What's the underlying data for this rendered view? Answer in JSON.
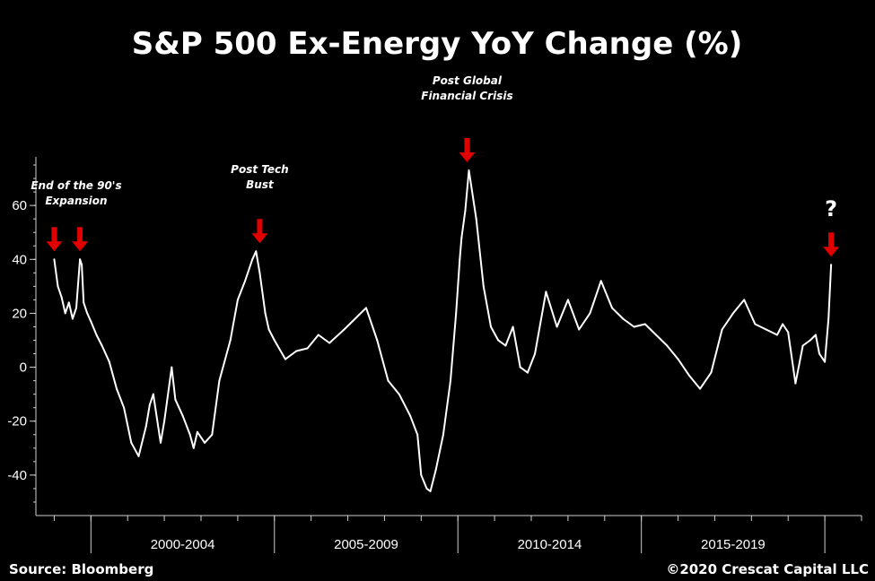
{
  "chart_data": {
    "type": "line",
    "title": "S&P 500 Ex-Energy YoY Change (%)",
    "xlabel": "",
    "ylabel": "",
    "xlim": [
      1998.5,
      2021.0
    ],
    "ylim": [
      -55,
      78
    ],
    "yticks": [
      -40,
      -20,
      0,
      20,
      40,
      60
    ],
    "period_labels": [
      "2000-2004",
      "2005-2009",
      "2010-2014",
      "2015-2019"
    ],
    "period_bounds": [
      2000.0,
      2005.0,
      2010.0,
      2015.0,
      2020.0
    ],
    "grid": false,
    "legend": "none",
    "line_color": "#ffffff",
    "arrow_color": "#e00000",
    "series": [
      {
        "x": [
          1999.0,
          1999.1,
          1999.2,
          1999.3,
          1999.4,
          1999.5,
          1999.6,
          1999.7,
          1999.75,
          1999.8,
          1999.9,
          2000.0,
          2000.15,
          2000.3,
          2000.5,
          2000.7,
          2000.9,
          2001.1,
          2001.3,
          2001.5,
          2001.6,
          2001.7,
          2001.9,
          2002.0,
          2002.2,
          2002.3,
          2002.5,
          2002.7,
          2002.8,
          2002.9,
          2003.1,
          2003.3,
          2003.5,
          2003.8,
          2004.0,
          2004.2,
          2004.4,
          2004.5,
          2004.6,
          2004.75,
          2004.85,
          2005.0,
          2005.3,
          2005.6,
          2005.9,
          2006.2,
          2006.5,
          2006.9,
          2007.2,
          2007.5,
          2007.8,
          2008.1,
          2008.4,
          2008.7,
          2008.9,
          2009.0,
          2009.15,
          2009.25,
          2009.4,
          2009.6,
          2009.8,
          2009.95,
          2010.05,
          2010.1,
          2010.2,
          2010.3,
          2010.5,
          2010.7,
          2010.9,
          2011.1,
          2011.3,
          2011.5,
          2011.7,
          2011.9,
          2012.1,
          2012.4,
          2012.7,
          2013.0,
          2013.3,
          2013.6,
          2013.9,
          2014.2,
          2014.5,
          2014.8,
          2015.1,
          2015.4,
          2015.7,
          2016.0,
          2016.3,
          2016.6,
          2016.9,
          2017.2,
          2017.5,
          2017.8,
          2018.1,
          2018.4,
          2018.7,
          2018.85,
          2019.0,
          2019.2,
          2019.4,
          2019.6,
          2019.75,
          2019.85,
          2020.0,
          2020.1,
          2020.17
        ],
        "values": [
          40,
          30,
          26,
          20,
          24,
          18,
          22,
          40,
          38,
          24,
          20,
          17,
          12,
          8,
          2,
          -8,
          -15,
          -28,
          -33,
          -22,
          -14,
          -10,
          -28,
          -20,
          0,
          -12,
          -18,
          -25,
          -30,
          -24,
          -28,
          -25,
          -5,
          10,
          25,
          32,
          40,
          43,
          35,
          20,
          14,
          10,
          3,
          6,
          7,
          12,
          9,
          14,
          18,
          22,
          10,
          -5,
          -10,
          -18,
          -25,
          -40,
          -45,
          -46,
          -38,
          -25,
          -5,
          20,
          40,
          48,
          58,
          73,
          55,
          30,
          15,
          10,
          8,
          15,
          0,
          -2,
          5,
          28,
          15,
          25,
          14,
          20,
          32,
          22,
          18,
          15,
          16,
          12,
          8,
          3,
          -3,
          -8,
          -2,
          14,
          20,
          25,
          16,
          14,
          12,
          16,
          13,
          -6,
          8,
          10,
          12,
          5,
          2,
          18,
          38
        ]
      }
    ],
    "annotations": [
      {
        "text_lines": [
          "End of the 90's",
          "Expansion"
        ],
        "x": 1999.6,
        "y": 61,
        "target_x": [
          1999.0,
          1999.7
        ],
        "target_y": 40
      },
      {
        "text_lines": [
          "Post Tech",
          "Bust"
        ],
        "x": 2004.6,
        "y": 67,
        "target_x": [
          2004.6
        ],
        "target_y": 43
      },
      {
        "text_lines": [
          "Post Global",
          "Financial Crisis"
        ],
        "x": 2010.25,
        "y": 100,
        "target_x": [
          2010.25
        ],
        "target_y": 73
      },
      {
        "text_lines": [
          "?"
        ],
        "x": 2020.17,
        "y": 58,
        "target_x": [
          2020.17
        ],
        "target_y": 38
      }
    ]
  },
  "footer": {
    "source": "Source: Bloomberg",
    "copyright": "©2020 Crescat Capital LLC"
  }
}
